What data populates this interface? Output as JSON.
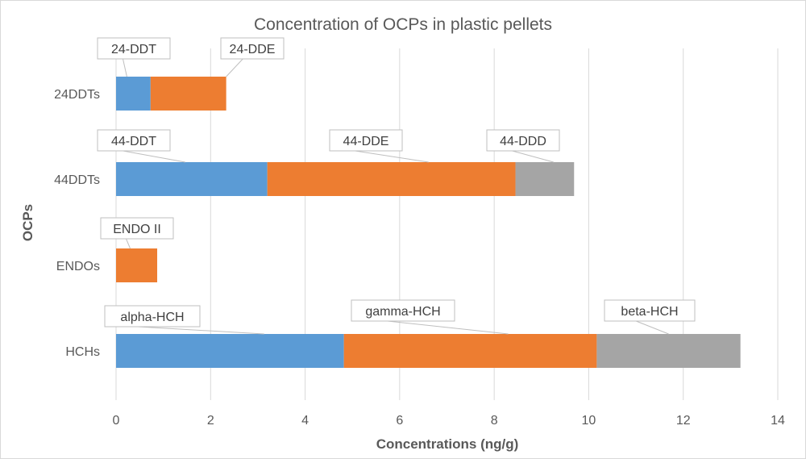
{
  "chart_data": {
    "type": "bar",
    "orientation": "horizontal",
    "stacked": true,
    "title": "Concentration of OCPs in plastic pellets",
    "xlabel": "Concentrations (ng/g)",
    "ylabel": "OCPs",
    "xlim": [
      0,
      14
    ],
    "xticks": [
      0,
      2,
      4,
      6,
      8,
      10,
      12,
      14
    ],
    "grid": "vertical",
    "legend": "none",
    "categories": [
      "24DDTs",
      "44DDTs",
      "ENDOs",
      "HCHs"
    ],
    "colors": [
      "#5b9bd5",
      "#ed7d31",
      "#a5a5a5"
    ],
    "rows": [
      {
        "category": "24DDTs",
        "segments": [
          {
            "label": "24-DDT",
            "value": 0.73
          },
          {
            "label": "24-DDE",
            "value": 1.6
          }
        ]
      },
      {
        "category": "44DDTs",
        "segments": [
          {
            "label": "44-DDT",
            "value": 3.2
          },
          {
            "label": "44-DDE",
            "value": 5.25
          },
          {
            "label": "44-DDD",
            "value": 1.24
          }
        ]
      },
      {
        "category": "ENDOs",
        "segments": [
          {
            "label": "",
            "value": 0
          },
          {
            "label": "ENDO II",
            "value": 0.87
          }
        ]
      },
      {
        "category": "HCHs",
        "segments": [
          {
            "label": "alpha-HCH",
            "value": 4.82
          },
          {
            "label": "gamma-HCH",
            "value": 5.35
          },
          {
            "label": "beta-HCH",
            "value": 3.04
          }
        ]
      }
    ]
  }
}
